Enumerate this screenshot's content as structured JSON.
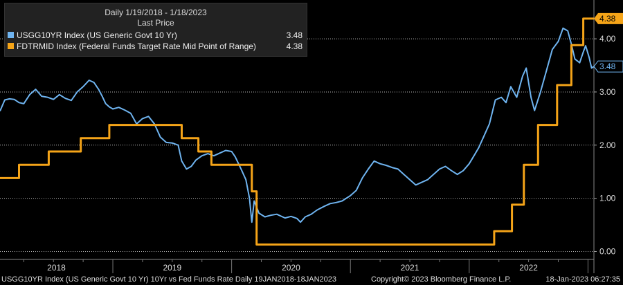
{
  "chart_data": {
    "type": "line",
    "legend": {
      "header_line1": "Daily 1/19/2018 - 1/18/2023",
      "header_line2": "Last Price",
      "placement": "top-left"
    },
    "x_tick_labels": [
      "2018",
      "2019",
      "2020",
      "2021",
      "2022"
    ],
    "x_range": [
      2018.05,
      2023.05
    ],
    "y_ticks": [
      "0.00",
      "1.00",
      "2.00",
      "3.00",
      "4.00"
    ],
    "y_range": [
      -0.15,
      4.6
    ],
    "grid": "horizontal-dotted",
    "series": [
      {
        "name": "USGG10YR Index (US Generic Govt 10 Yr)",
        "last_value": "3.48",
        "color": "#6fb4f0",
        "style": "line",
        "points": [
          [
            2018.05,
            2.64
          ],
          [
            2018.09,
            2.85
          ],
          [
            2018.13,
            2.87
          ],
          [
            2018.17,
            2.86
          ],
          [
            2018.21,
            2.8
          ],
          [
            2018.25,
            2.78
          ],
          [
            2018.3,
            2.95
          ],
          [
            2018.35,
            3.05
          ],
          [
            2018.4,
            2.92
          ],
          [
            2018.45,
            2.9
          ],
          [
            2018.5,
            2.86
          ],
          [
            2018.55,
            2.95
          ],
          [
            2018.6,
            2.88
          ],
          [
            2018.65,
            2.84
          ],
          [
            2018.7,
            3.0
          ],
          [
            2018.75,
            3.1
          ],
          [
            2018.8,
            3.22
          ],
          [
            2018.84,
            3.18
          ],
          [
            2018.88,
            3.05
          ],
          [
            2018.91,
            2.92
          ],
          [
            2018.94,
            2.78
          ],
          [
            2018.97,
            2.72
          ],
          [
            2019.0,
            2.68
          ],
          [
            2019.05,
            2.71
          ],
          [
            2019.1,
            2.66
          ],
          [
            2019.15,
            2.6
          ],
          [
            2019.2,
            2.4
          ],
          [
            2019.25,
            2.5
          ],
          [
            2019.3,
            2.54
          ],
          [
            2019.35,
            2.4
          ],
          [
            2019.4,
            2.15
          ],
          [
            2019.45,
            2.05
          ],
          [
            2019.5,
            2.04
          ],
          [
            2019.55,
            2.0
          ],
          [
            2019.58,
            1.7
          ],
          [
            2019.62,
            1.55
          ],
          [
            2019.66,
            1.6
          ],
          [
            2019.7,
            1.72
          ],
          [
            2019.75,
            1.8
          ],
          [
            2019.8,
            1.84
          ],
          [
            2019.85,
            1.8
          ],
          [
            2019.9,
            1.85
          ],
          [
            2019.95,
            1.9
          ],
          [
            2020.0,
            1.88
          ],
          [
            2020.03,
            1.78
          ],
          [
            2020.08,
            1.55
          ],
          [
            2020.12,
            1.35
          ],
          [
            2020.15,
            1.0
          ],
          [
            2020.17,
            0.55
          ],
          [
            2020.19,
            0.95
          ],
          [
            2020.23,
            0.72
          ],
          [
            2020.28,
            0.65
          ],
          [
            2020.33,
            0.68
          ],
          [
            2020.38,
            0.7
          ],
          [
            2020.45,
            0.63
          ],
          [
            2020.5,
            0.66
          ],
          [
            2020.55,
            0.62
          ],
          [
            2020.58,
            0.55
          ],
          [
            2020.62,
            0.65
          ],
          [
            2020.67,
            0.7
          ],
          [
            2020.72,
            0.78
          ],
          [
            2020.78,
            0.85
          ],
          [
            2020.83,
            0.9
          ],
          [
            2020.88,
            0.92
          ],
          [
            2020.93,
            0.95
          ],
          [
            2021.0,
            1.05
          ],
          [
            2021.05,
            1.15
          ],
          [
            2021.1,
            1.38
          ],
          [
            2021.15,
            1.55
          ],
          [
            2021.2,
            1.7
          ],
          [
            2021.25,
            1.65
          ],
          [
            2021.3,
            1.62
          ],
          [
            2021.35,
            1.58
          ],
          [
            2021.4,
            1.55
          ],
          [
            2021.45,
            1.45
          ],
          [
            2021.5,
            1.35
          ],
          [
            2021.55,
            1.25
          ],
          [
            2021.6,
            1.3
          ],
          [
            2021.65,
            1.35
          ],
          [
            2021.7,
            1.45
          ],
          [
            2021.75,
            1.55
          ],
          [
            2021.8,
            1.6
          ],
          [
            2021.85,
            1.52
          ],
          [
            2021.9,
            1.45
          ],
          [
            2021.95,
            1.52
          ],
          [
            2022.0,
            1.65
          ],
          [
            2022.04,
            1.8
          ],
          [
            2022.08,
            1.95
          ],
          [
            2022.12,
            2.15
          ],
          [
            2022.17,
            2.4
          ],
          [
            2022.22,
            2.85
          ],
          [
            2022.27,
            2.9
          ],
          [
            2022.31,
            2.8
          ],
          [
            2022.35,
            3.1
          ],
          [
            2022.4,
            2.9
          ],
          [
            2022.45,
            3.3
          ],
          [
            2022.48,
            3.45
          ],
          [
            2022.52,
            2.9
          ],
          [
            2022.55,
            2.65
          ],
          [
            2022.6,
            3.0
          ],
          [
            2022.65,
            3.4
          ],
          [
            2022.7,
            3.8
          ],
          [
            2022.75,
            3.95
          ],
          [
            2022.79,
            4.2
          ],
          [
            2022.83,
            4.15
          ],
          [
            2022.86,
            3.9
          ],
          [
            2022.89,
            3.62
          ],
          [
            2022.93,
            3.55
          ],
          [
            2022.96,
            3.75
          ],
          [
            2022.98,
            3.87
          ],
          [
            2023.01,
            3.65
          ],
          [
            2023.03,
            3.45
          ],
          [
            2023.05,
            3.48
          ]
        ]
      },
      {
        "name": "FDTRMID Index (Federal Funds Target Rate Mid Point of Range)",
        "last_value": "4.38",
        "color": "#f5a418",
        "style": "step",
        "points": [
          [
            2018.05,
            1.38
          ],
          [
            2018.21,
            1.63
          ],
          [
            2018.46,
            1.88
          ],
          [
            2018.73,
            2.13
          ],
          [
            2018.97,
            2.38
          ],
          [
            2019.58,
            2.13
          ],
          [
            2019.72,
            1.88
          ],
          [
            2019.83,
            1.63
          ],
          [
            2020.17,
            1.13
          ],
          [
            2020.21,
            0.13
          ],
          [
            2022.21,
            0.38
          ],
          [
            2022.36,
            0.88
          ],
          [
            2022.46,
            1.63
          ],
          [
            2022.58,
            2.38
          ],
          [
            2022.74,
            3.13
          ],
          [
            2022.86,
            3.88
          ],
          [
            2022.96,
            4.38
          ],
          [
            2023.05,
            4.38
          ]
        ]
      }
    ]
  },
  "footer": {
    "left": "USGG10YR Index (US Generic Govt 10 Yr) 10Yr vs Fed Funds Rate  Daily 19JAN2018-18JAN2023",
    "center": "Copyright© 2023 Bloomberg Finance L.P.",
    "right": "18-Jan-2023 06:27:35"
  }
}
